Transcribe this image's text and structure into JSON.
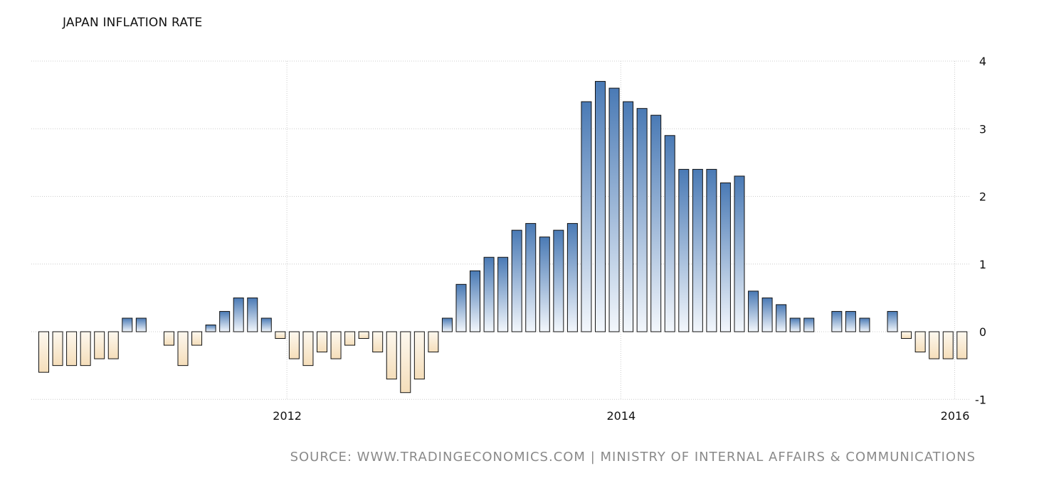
{
  "chart_data": {
    "type": "bar",
    "title": "JAPAN INFLATION RATE",
    "source": "SOURCE: WWW.TRADINGECONOMICS.COM | MINISTRY OF INTERNAL AFFAIRS & COMMUNICATIONS",
    "xlabel": "",
    "ylabel": "",
    "ylim": [
      -1,
      4
    ],
    "y_ticks": [
      "4",
      "3",
      "2",
      "1",
      "0",
      "-1"
    ],
    "y_tick_values": [
      4,
      3,
      2,
      1,
      0,
      -1
    ],
    "x_ticks": [
      "2012",
      "2014",
      "2016"
    ],
    "x_tick_values": [
      "2012-01",
      "2014-01",
      "2016-01"
    ],
    "grid": true,
    "y_axis_position": "right",
    "x_start": "2010-07",
    "x_end": "2016-05",
    "values": [
      -0.6,
      -0.5,
      -0.5,
      -0.5,
      -0.4,
      -0.4,
      0.2,
      0.2,
      0,
      -0.2,
      -0.5,
      -0.2,
      0.1,
      0.3,
      0.5,
      0.5,
      0.2,
      -0.1,
      -0.4,
      -0.5,
      -0.3,
      -0.4,
      -0.2,
      -0.1,
      -0.3,
      -0.7,
      -0.9,
      -0.7,
      -0.3,
      0.2,
      0.7,
      0.9,
      1.1,
      1.1,
      1.5,
      1.6,
      1.4,
      1.5,
      1.6,
      3.4,
      3.7,
      3.6,
      3.4,
      3.3,
      3.2,
      2.9,
      2.4,
      2.4,
      2.4,
      2.2,
      2.3,
      0.6,
      0.5,
      0.4,
      0.2,
      0.2,
      0,
      0.3,
      0.3,
      0.2,
      0,
      0.3,
      -0.1,
      -0.3,
      -0.4,
      -0.4,
      -0.4
    ],
    "colors": {
      "positive_top": "#4a7ab5",
      "positive_bottom": "#f3f7fc",
      "negative_top": "#fdf8ef",
      "negative_bottom": "#f5deba",
      "bar_outline": "#111111",
      "grid": "#cccccc"
    }
  }
}
